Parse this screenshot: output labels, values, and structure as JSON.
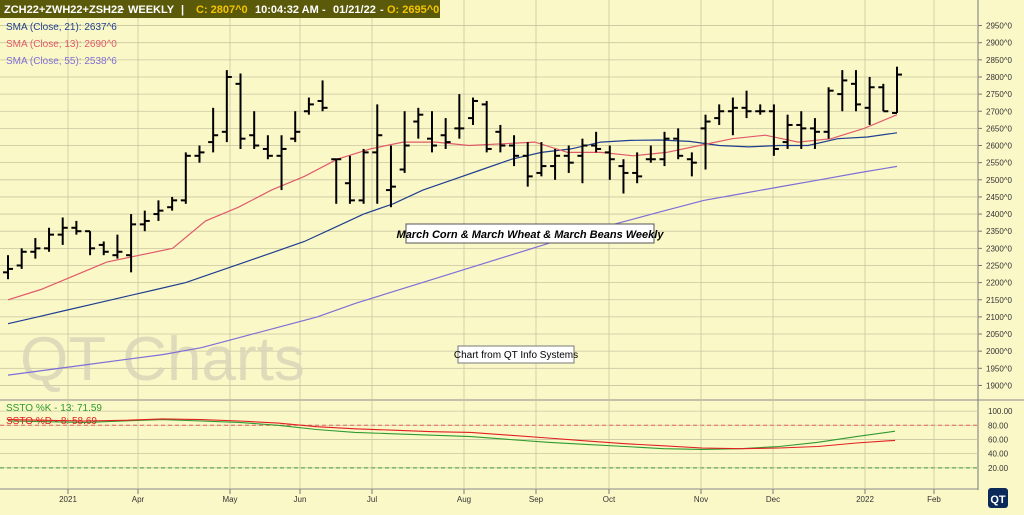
{
  "header": {
    "symbol": "ZCH22+ZWH22+ZSH22",
    "sep1": "~",
    "interval": "WEEKLY",
    "sep2": "|",
    "close_label": "C: 2807^0",
    "time": "10:04:32 AM",
    "sep3": "-",
    "date": "01/21/22",
    "sep4": "-",
    "open_label": "O: 2695^0"
  },
  "legend": [
    {
      "label": "SMA (Close, 21): 2637^6",
      "color": "#1f3f8f"
    },
    {
      "label": "SMA (Close, 13): 2690^0",
      "color": "#e05a6a"
    },
    {
      "label": "SMA (Close, 55): 2538^6",
      "color": "#7e6fd6"
    }
  ],
  "lower_legend": [
    {
      "label": "SSTO %K - 13: 71.59",
      "color": "#2e9a2e"
    },
    {
      "label": "SSTO %D - 8: 58.69",
      "color": "#e02020"
    }
  ],
  "annotations": {
    "title": "March Corn & March Wheat & March Beans Weekly",
    "source": "Chart from QT Info Systems",
    "watermark": "QT Charts",
    "logo": "QT"
  },
  "chart_data": [
    {
      "type": "ohlc",
      "title": "March Corn & March Wheat & March Beans Weekly",
      "price_ticks": [
        "2950^0",
        "2900^0",
        "2850^0",
        "2800^0",
        "2750^0",
        "2700^0",
        "2650^0",
        "2600^0",
        "2550^0",
        "2500^0",
        "2450^0",
        "2400^0",
        "2350^0",
        "2300^0",
        "2250^0",
        "2200^0",
        "2150^0",
        "2100^0",
        "2050^0",
        "2000^0",
        "1950^0",
        "1900^0"
      ],
      "ylim": [
        1850,
        3000
      ],
      "x_labels": [
        "2021",
        "Apr",
        "May",
        "Jun",
        "Jul",
        "Aug",
        "Sep",
        "Oct",
        "Nov",
        "Dec",
        "2022",
        "Feb"
      ],
      "bars": [
        {
          "o": 2230,
          "h": 2280,
          "l": 2210,
          "c": 2240
        },
        {
          "o": 2250,
          "h": 2300,
          "l": 2240,
          "c": 2290
        },
        {
          "o": 2290,
          "h": 2330,
          "l": 2270,
          "c": 2300
        },
        {
          "o": 2300,
          "h": 2360,
          "l": 2290,
          "c": 2340
        },
        {
          "o": 2340,
          "h": 2390,
          "l": 2310,
          "c": 2360
        },
        {
          "o": 2360,
          "h": 2380,
          "l": 2340,
          "c": 2350
        },
        {
          "o": 2350,
          "h": 2350,
          "l": 2280,
          "c": 2300
        },
        {
          "o": 2310,
          "h": 2320,
          "l": 2280,
          "c": 2290
        },
        {
          "o": 2280,
          "h": 2340,
          "l": 2270,
          "c": 2290
        },
        {
          "o": 2280,
          "h": 2400,
          "l": 2230,
          "c": 2370
        },
        {
          "o": 2370,
          "h": 2410,
          "l": 2350,
          "c": 2380
        },
        {
          "o": 2400,
          "h": 2440,
          "l": 2380,
          "c": 2410
        },
        {
          "o": 2420,
          "h": 2450,
          "l": 2410,
          "c": 2440
        },
        {
          "o": 2440,
          "h": 2580,
          "l": 2430,
          "c": 2570
        },
        {
          "o": 2570,
          "h": 2600,
          "l": 2550,
          "c": 2580
        },
        {
          "o": 2610,
          "h": 2710,
          "l": 2580,
          "c": 2630
        },
        {
          "o": 2640,
          "h": 2820,
          "l": 2610,
          "c": 2800
        },
        {
          "o": 2780,
          "h": 2810,
          "l": 2590,
          "c": 2620
        },
        {
          "o": 2630,
          "h": 2700,
          "l": 2590,
          "c": 2600
        },
        {
          "o": 2590,
          "h": 2630,
          "l": 2560,
          "c": 2570
        },
        {
          "o": 2570,
          "h": 2630,
          "l": 2470,
          "c": 2590
        },
        {
          "o": 2620,
          "h": 2700,
          "l": 2610,
          "c": 2640
        },
        {
          "o": 2700,
          "h": 2740,
          "l": 2690,
          "c": 2720
        },
        {
          "o": 2730,
          "h": 2790,
          "l": 2700,
          "c": 2710
        },
        {
          "o": 2560,
          "h": 2560,
          "l": 2430,
          "c": 2560
        },
        {
          "o": 2490,
          "h": 2570,
          "l": 2430,
          "c": 2440
        },
        {
          "o": 2440,
          "h": 2590,
          "l": 2430,
          "c": 2580
        },
        {
          "o": 2580,
          "h": 2720,
          "l": 2430,
          "c": 2630
        },
        {
          "o": 2470,
          "h": 2600,
          "l": 2420,
          "c": 2480
        },
        {
          "o": 2530,
          "h": 2700,
          "l": 2520,
          "c": 2600
        },
        {
          "o": 2670,
          "h": 2710,
          "l": 2620,
          "c": 2690
        },
        {
          "o": 2620,
          "h": 2700,
          "l": 2580,
          "c": 2600
        },
        {
          "o": 2630,
          "h": 2680,
          "l": 2590,
          "c": 2610
        },
        {
          "o": 2650,
          "h": 2750,
          "l": 2620,
          "c": 2650
        },
        {
          "o": 2680,
          "h": 2740,
          "l": 2660,
          "c": 2730
        },
        {
          "o": 2720,
          "h": 2730,
          "l": 2580,
          "c": 2590
        },
        {
          "o": 2640,
          "h": 2660,
          "l": 2580,
          "c": 2600
        },
        {
          "o": 2600,
          "h": 2630,
          "l": 2540,
          "c": 2570
        },
        {
          "o": 2570,
          "h": 2610,
          "l": 2480,
          "c": 2510
        },
        {
          "o": 2520,
          "h": 2610,
          "l": 2510,
          "c": 2540
        },
        {
          "o": 2540,
          "h": 2590,
          "l": 2500,
          "c": 2570
        },
        {
          "o": 2570,
          "h": 2600,
          "l": 2520,
          "c": 2550
        },
        {
          "o": 2570,
          "h": 2620,
          "l": 2490,
          "c": 2600
        },
        {
          "o": 2600,
          "h": 2640,
          "l": 2580,
          "c": 2590
        },
        {
          "o": 2580,
          "h": 2600,
          "l": 2500,
          "c": 2560
        },
        {
          "o": 2540,
          "h": 2560,
          "l": 2460,
          "c": 2520
        },
        {
          "o": 2520,
          "h": 2580,
          "l": 2490,
          "c": 2510
        },
        {
          "o": 2560,
          "h": 2600,
          "l": 2550,
          "c": 2560
        },
        {
          "o": 2560,
          "h": 2640,
          "l": 2540,
          "c": 2620
        },
        {
          "o": 2620,
          "h": 2650,
          "l": 2560,
          "c": 2570
        },
        {
          "o": 2560,
          "h": 2580,
          "l": 2510,
          "c": 2550
        },
        {
          "o": 2650,
          "h": 2690,
          "l": 2530,
          "c": 2670
        },
        {
          "o": 2680,
          "h": 2720,
          "l": 2660,
          "c": 2700
        },
        {
          "o": 2700,
          "h": 2740,
          "l": 2630,
          "c": 2710
        },
        {
          "o": 2710,
          "h": 2760,
          "l": 2680,
          "c": 2700
        },
        {
          "o": 2700,
          "h": 2720,
          "l": 2690,
          "c": 2700
        },
        {
          "o": 2700,
          "h": 2720,
          "l": 2570,
          "c": 2590
        },
        {
          "o": 2610,
          "h": 2690,
          "l": 2590,
          "c": 2660
        },
        {
          "o": 2660,
          "h": 2700,
          "l": 2590,
          "c": 2650
        },
        {
          "o": 2650,
          "h": 2680,
          "l": 2590,
          "c": 2640
        },
        {
          "o": 2640,
          "h": 2770,
          "l": 2620,
          "c": 2760
        },
        {
          "o": 2750,
          "h": 2820,
          "l": 2700,
          "c": 2790
        },
        {
          "o": 2780,
          "h": 2820,
          "l": 2700,
          "c": 2720
        },
        {
          "o": 2710,
          "h": 2800,
          "l": 2660,
          "c": 2770
        },
        {
          "o": 2770,
          "h": 2780,
          "l": 2700,
          "c": 2700
        },
        {
          "o": 2695,
          "h": 2830,
          "l": 2695,
          "c": 2807
        }
      ],
      "series": [
        {
          "name": "SMA (Close, 21)",
          "color": "#1f3f8f",
          "y": [
            2080,
            2100,
            2120,
            2140,
            2160,
            2180,
            2200,
            2230,
            2260,
            2290,
            2320,
            2360,
            2400,
            2430,
            2470,
            2500,
            2530,
            2560,
            2580,
            2590,
            2610,
            2615,
            2616,
            2612,
            2600,
            2596,
            2600,
            2600,
            2620,
            2625,
            2637
          ]
        },
        {
          "name": "SMA (Close, 13)",
          "color": "#e05a6a",
          "y": [
            2150,
            2180,
            2220,
            2260,
            2280,
            2300,
            2380,
            2420,
            2470,
            2510,
            2560,
            2590,
            2610,
            2610,
            2600,
            2605,
            2610,
            2580,
            2580,
            2570,
            2580,
            2600,
            2620,
            2630,
            2610,
            2620,
            2650,
            2690
          ]
        },
        {
          "name": "SMA (Close, 55)",
          "color": "#7e6fd6",
          "y": [
            1930,
            1945,
            1960,
            1975,
            1990,
            2010,
            2040,
            2070,
            2100,
            2140,
            2175,
            2210,
            2245,
            2280,
            2315,
            2350,
            2380,
            2410,
            2440,
            2460,
            2480,
            2500,
            2520,
            2539
          ]
        }
      ]
    },
    {
      "type": "line",
      "y_ticks": [
        "100.00",
        "80.00",
        "60.00",
        "40.00",
        "20.00"
      ],
      "ylim": [
        0,
        110
      ],
      "ref_lines": [
        80,
        20
      ],
      "series": [
        {
          "name": "SSTO %K - 13",
          "color": "#2e9a2e",
          "y": [
            86,
            85,
            84,
            86,
            88,
            86,
            84,
            80,
            74,
            70,
            68,
            66,
            64,
            60,
            56,
            53,
            50,
            47,
            46,
            47,
            50,
            56,
            64,
            71.59
          ]
        },
        {
          "name": "SSTO %D - 8",
          "color": "#e02020",
          "y": [
            88,
            87,
            86,
            87,
            89,
            88,
            86,
            83,
            78,
            75,
            73,
            71,
            70,
            66,
            62,
            58,
            54,
            51,
            48,
            47,
            48,
            50,
            55,
            58.69
          ]
        }
      ]
    }
  ]
}
